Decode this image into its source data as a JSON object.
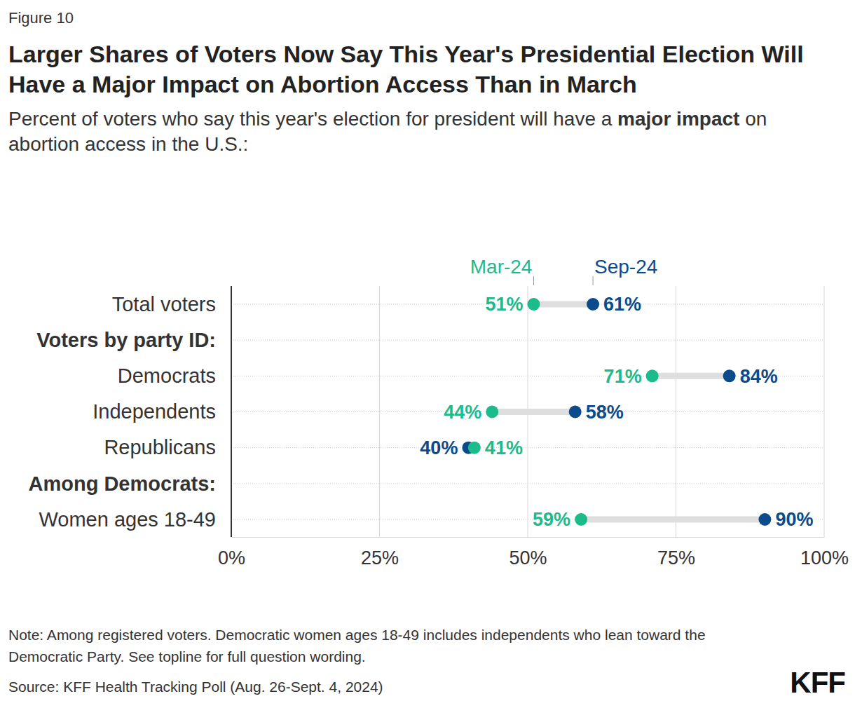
{
  "chart_data": {
    "type": "dumbbell",
    "figure_label": "Figure 10",
    "title": "Larger Shares of Voters Now Say This Year's Presidential Election Will Have a Major Impact on Abortion Access Than in March",
    "subtitle": [
      "Percent of voters who say this year's election for president will have a ",
      "major impact",
      " on abortion access in the U.S.:"
    ],
    "categories": [
      "Total voters",
      "Voters by party ID:",
      "Democrats",
      "Independents",
      "Republicans",
      "Among Democrats:",
      "Women ages 18-49"
    ],
    "series": [
      {
        "name": "Mar-24",
        "color": "#1cbb8c",
        "values": [
          51,
          null,
          71,
          44,
          41,
          null,
          59
        ],
        "value_labels": [
          "51%",
          null,
          "71%",
          "44%",
          "41%",
          null,
          "59%"
        ]
      },
      {
        "name": "Sep-24",
        "color": "#0b4a8b",
        "values": [
          61,
          null,
          84,
          58,
          40,
          null,
          90
        ],
        "value_labels": [
          "61%",
          null,
          "84%",
          "58%",
          "40%",
          null,
          "90%"
        ]
      }
    ],
    "orientation": "horizontal",
    "xlim": [
      0,
      100
    ],
    "xticks": [
      {
        "value": 0,
        "label": "0%"
      },
      {
        "value": 25,
        "label": "25%"
      },
      {
        "value": 50,
        "label": "50%"
      },
      {
        "value": 75,
        "label": "75%"
      },
      {
        "value": 100,
        "label": "100%"
      }
    ],
    "grid": true,
    "data_labels": true,
    "note": "Note: Among registered voters. Democratic women ages 18-49 includes independents who lean toward the Democratic Party. See topline for full question wording.",
    "source": "Source: KFF Health Tracking Poll (Aug. 26-Sept. 4, 2024)",
    "logo": "KFF"
  }
}
